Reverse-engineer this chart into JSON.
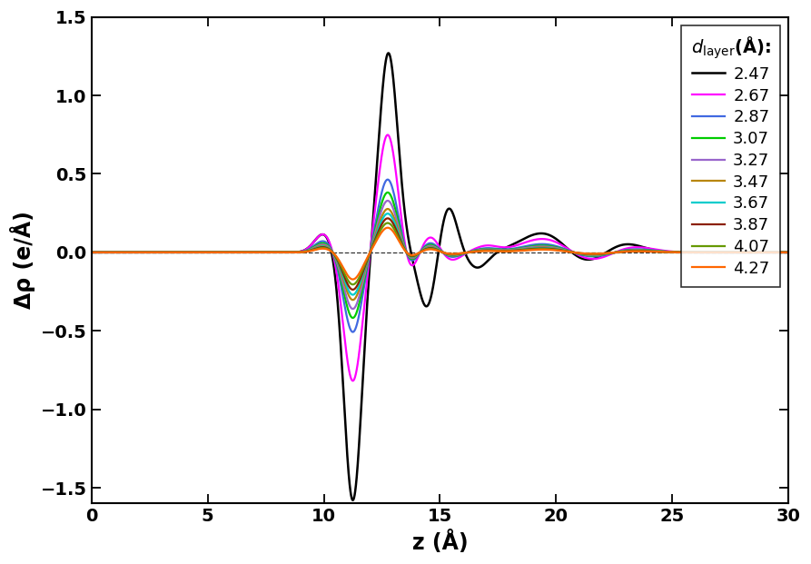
{
  "title": "",
  "xlabel": "z (Å)",
  "ylabel": "Δρ (e/Å)",
  "xlim": [
    0,
    30
  ],
  "ylim": [
    -1.6,
    1.5
  ],
  "xticks": [
    0,
    5,
    10,
    15,
    20,
    25,
    30
  ],
  "yticks": [
    -1.5,
    -1.0,
    -0.5,
    0.0,
    0.5,
    1.0,
    1.5
  ],
  "legend_title": "$d_{\\mathrm{layer}}$(Å):",
  "series": [
    {
      "label": "2.47",
      "color": "#000000",
      "lw": 1.8
    },
    {
      "label": "2.67",
      "color": "#ff00ff",
      "lw": 1.6
    },
    {
      "label": "2.87",
      "color": "#4169e1",
      "lw": 1.6
    },
    {
      "label": "3.07",
      "color": "#00cc00",
      "lw": 1.6
    },
    {
      "label": "3.27",
      "color": "#9966cc",
      "lw": 1.6
    },
    {
      "label": "3.47",
      "color": "#b8860b",
      "lw": 1.6
    },
    {
      "label": "3.67",
      "color": "#00cccc",
      "lw": 1.6
    },
    {
      "label": "3.87",
      "color": "#8b2000",
      "lw": 1.6
    },
    {
      "label": "4.07",
      "color": "#669900",
      "lw": 1.6
    },
    {
      "label": "4.27",
      "color": "#ff6600",
      "lw": 1.6
    }
  ],
  "background_color": "#ffffff",
  "dpi": 100
}
